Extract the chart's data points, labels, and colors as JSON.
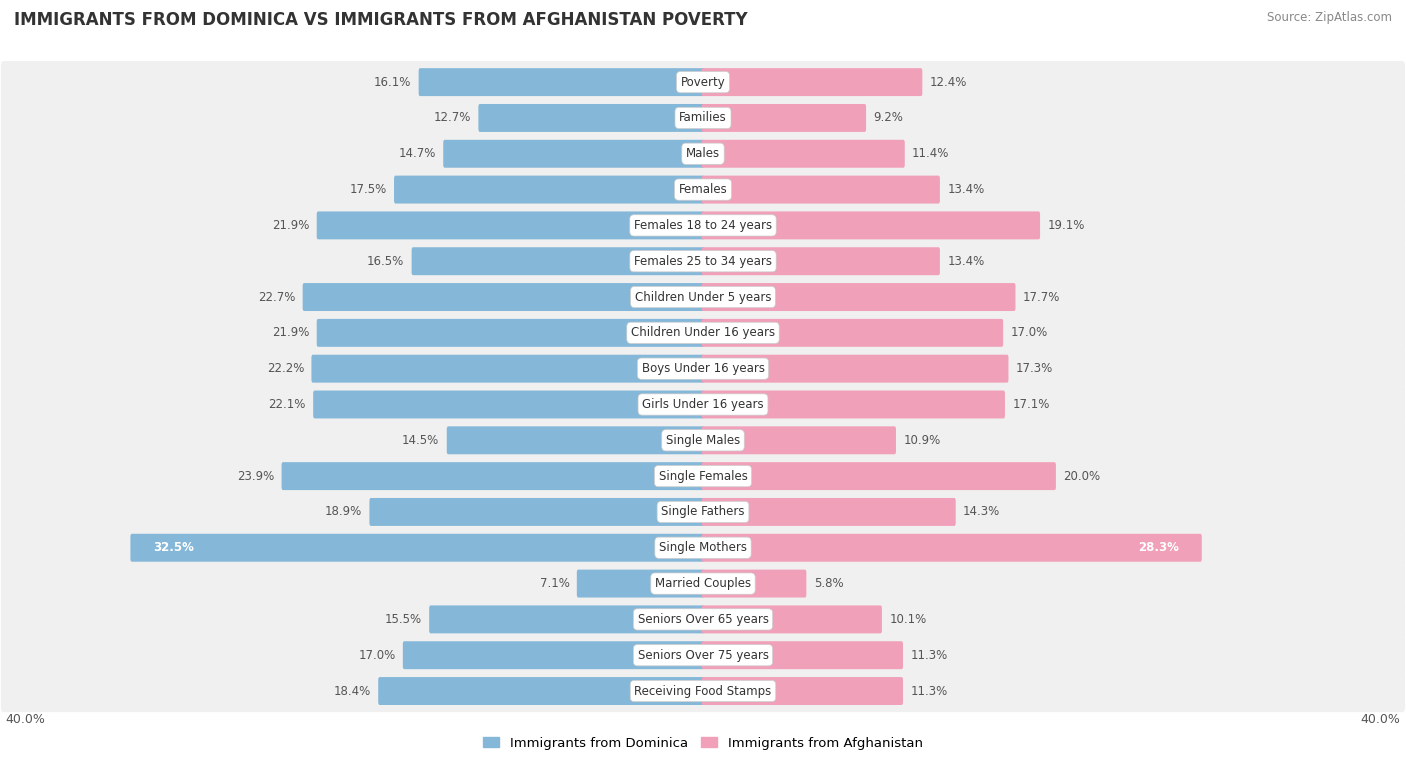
{
  "title": "IMMIGRANTS FROM DOMINICA VS IMMIGRANTS FROM AFGHANISTAN POVERTY",
  "source": "Source: ZipAtlas.com",
  "categories": [
    "Poverty",
    "Families",
    "Males",
    "Females",
    "Females 18 to 24 years",
    "Females 25 to 34 years",
    "Children Under 5 years",
    "Children Under 16 years",
    "Boys Under 16 years",
    "Girls Under 16 years",
    "Single Males",
    "Single Females",
    "Single Fathers",
    "Single Mothers",
    "Married Couples",
    "Seniors Over 65 years",
    "Seniors Over 75 years",
    "Receiving Food Stamps"
  ],
  "dominica_values": [
    16.1,
    12.7,
    14.7,
    17.5,
    21.9,
    16.5,
    22.7,
    21.9,
    22.2,
    22.1,
    14.5,
    23.9,
    18.9,
    32.5,
    7.1,
    15.5,
    17.0,
    18.4
  ],
  "afghanistan_values": [
    12.4,
    9.2,
    11.4,
    13.4,
    19.1,
    13.4,
    17.7,
    17.0,
    17.3,
    17.1,
    10.9,
    20.0,
    14.3,
    28.3,
    5.8,
    10.1,
    11.3,
    11.3
  ],
  "dominica_color": "#85b8d8",
  "afghanistan_color": "#f0a0b8",
  "dominica_label": "Immigrants from Dominica",
  "afghanistan_label": "Immigrants from Afghanistan",
  "xlim": 40.0,
  "fig_bg": "#ffffff",
  "row_bg_light": "#f0f0f0",
  "row_bg_gap": "#ffffff",
  "title_fontsize": 12,
  "value_fontsize": 8.5,
  "cat_fontsize": 8.5
}
